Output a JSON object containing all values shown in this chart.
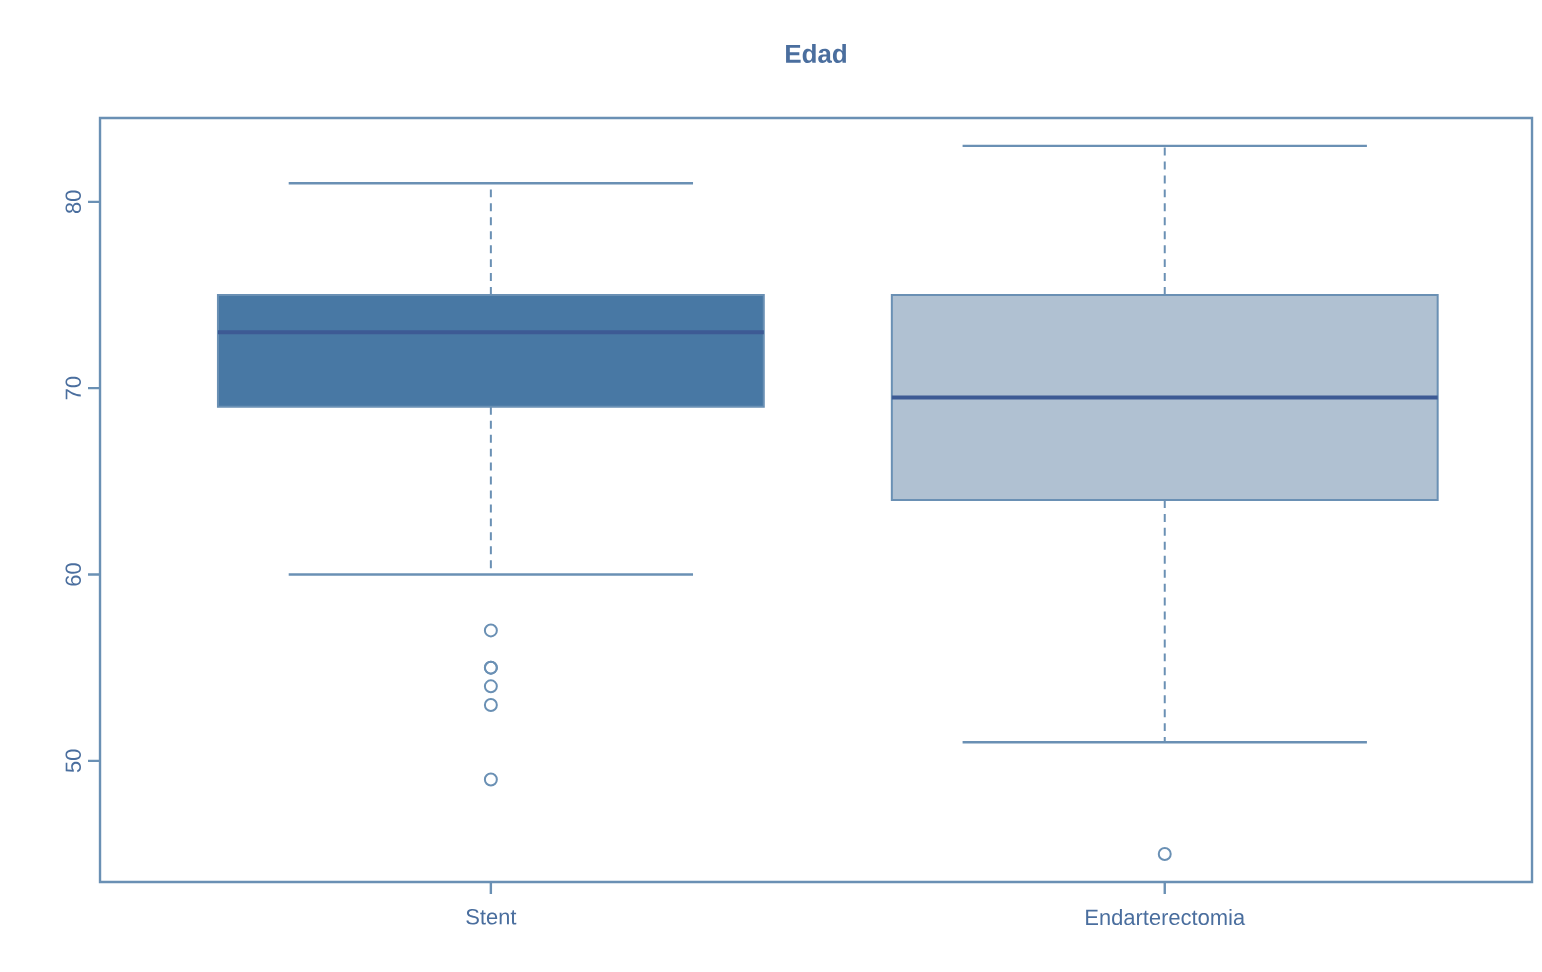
{
  "chart_data": {
    "type": "box",
    "title": "Edad",
    "categories": [
      "Stent",
      "Endarterectomia"
    ],
    "colors": [
      "#4878a4",
      "#b0c1d2"
    ],
    "boxes": [
      {
        "low": 60,
        "q1": 69,
        "median": 73,
        "q3": 75,
        "high": 81,
        "outliers": [
          57,
          55,
          55,
          54,
          53,
          49
        ]
      },
      {
        "low": 51,
        "q1": 64,
        "median": 69.5,
        "q3": 75,
        "high": 83,
        "outliers": [
          45
        ]
      }
    ],
    "ylim": [
      43.5,
      84.5
    ],
    "yticks": [
      50,
      60,
      70,
      80
    ]
  }
}
